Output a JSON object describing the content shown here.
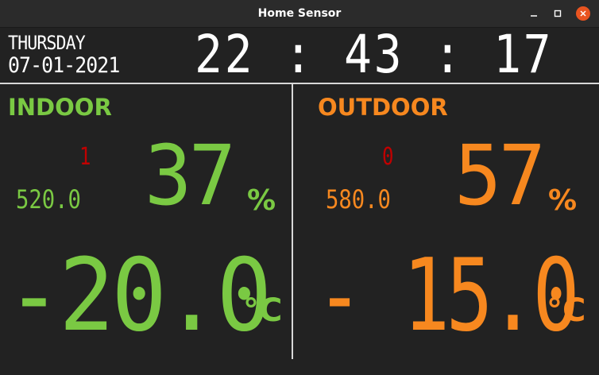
{
  "window": {
    "title": "Home Sensor",
    "controls": {
      "minimize_icon": "minimize-icon",
      "maximize_icon": "maximize-icon",
      "close_icon": "close-icon",
      "close_color": "#e95420"
    }
  },
  "header": {
    "day": "THURSDAY",
    "date": "07-01-2021",
    "time": "22 : 43 : 17"
  },
  "indoor": {
    "label": "INDOOR",
    "color": "#7ac943",
    "indicator": "1",
    "reading": "520.0",
    "humidity": "37",
    "humidity_unit": "%",
    "temperature": "-20.0",
    "temperature_unit": "°C"
  },
  "outdoor": {
    "label": "OUTDOOR",
    "color": "#f7881f",
    "indicator": "0",
    "reading": "580.0",
    "humidity": "57",
    "humidity_unit": "%",
    "temperature": "- 15.0",
    "temperature_unit": "°C"
  },
  "colors": {
    "background": "#222222",
    "indicator": "#c00000",
    "divider": "#d8d8d8"
  }
}
